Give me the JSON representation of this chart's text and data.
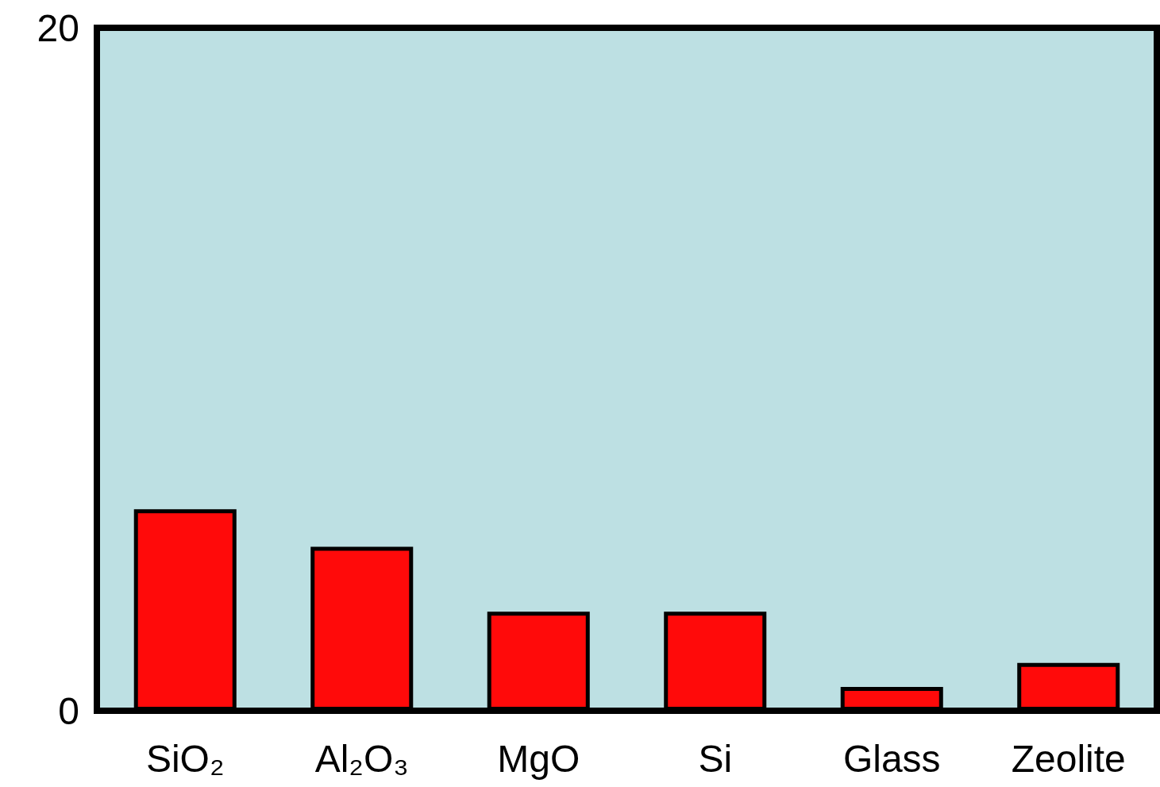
{
  "chart_data": {
    "type": "bar",
    "categories": [
      "SiO₂",
      "Al₂O₃",
      "MgO",
      "Si",
      "Glass",
      "Zeolite"
    ],
    "values": [
      5.9,
      4.8,
      2.9,
      2.9,
      0.7,
      1.4
    ],
    "color": "#ff0a0a",
    "ylim": [
      0,
      20
    ],
    "yticks": [
      0,
      20
    ]
  }
}
